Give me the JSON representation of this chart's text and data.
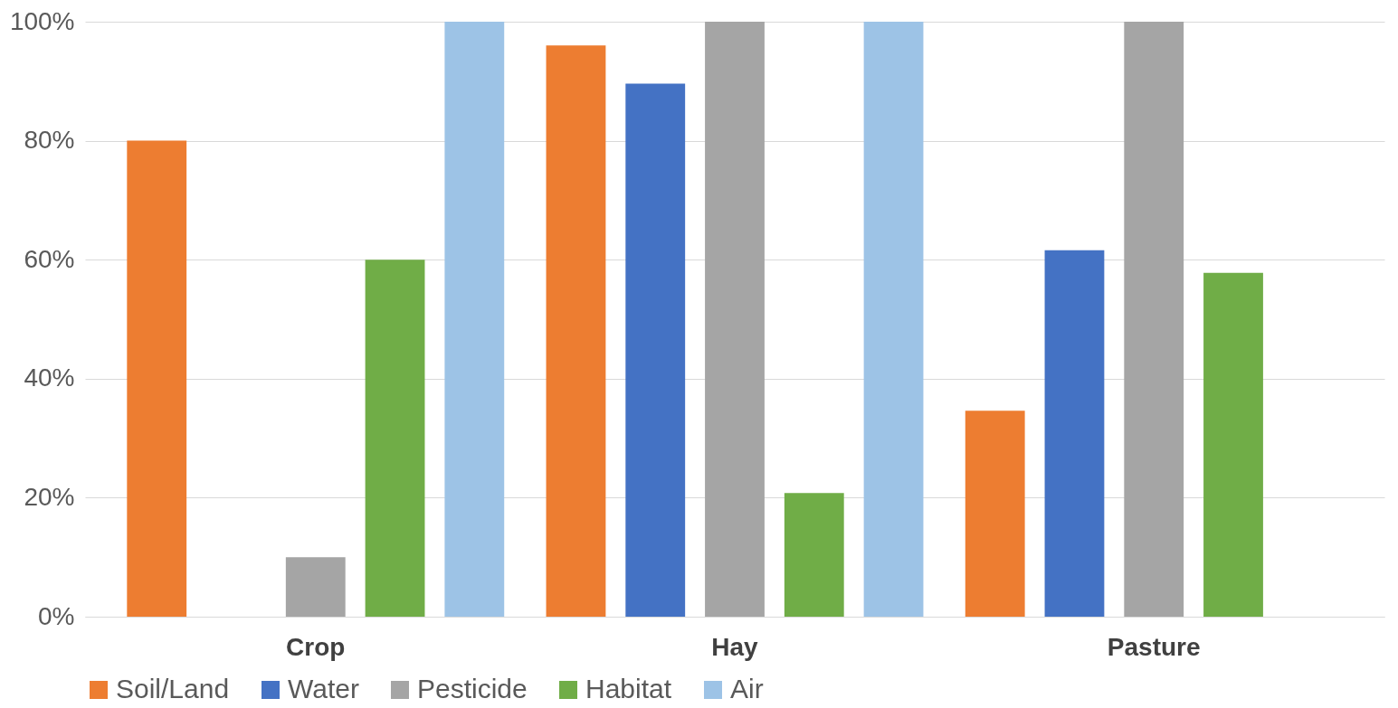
{
  "chart_data": {
    "type": "bar",
    "categories": [
      "Crop",
      "Hay",
      "Pasture"
    ],
    "series": [
      {
        "name": "Soil/Land",
        "color": "#ed7d31",
        "values": [
          80,
          96,
          34.6
        ]
      },
      {
        "name": "Water",
        "color": "#4472c4",
        "values": [
          null,
          89.6,
          61.6
        ]
      },
      {
        "name": "Pesticide",
        "color": "#a5a5a5",
        "values": [
          10,
          100,
          100
        ]
      },
      {
        "name": "Habitat",
        "color": "#70ad47",
        "values": [
          60,
          20.8,
          57.8
        ]
      },
      {
        "name": "Air",
        "color": "#9dc3e6",
        "values": [
          100,
          100,
          null
        ]
      }
    ],
    "ylim": [
      0,
      100
    ],
    "yticks": [
      {
        "value": 0,
        "label": "0%"
      },
      {
        "value": 20,
        "label": "20%"
      },
      {
        "value": 40,
        "label": "40%"
      },
      {
        "value": 60,
        "label": "60%"
      },
      {
        "value": 80,
        "label": "80%"
      },
      {
        "value": 100,
        "label": "100%"
      }
    ],
    "grid": "y",
    "legend": "bottom"
  }
}
